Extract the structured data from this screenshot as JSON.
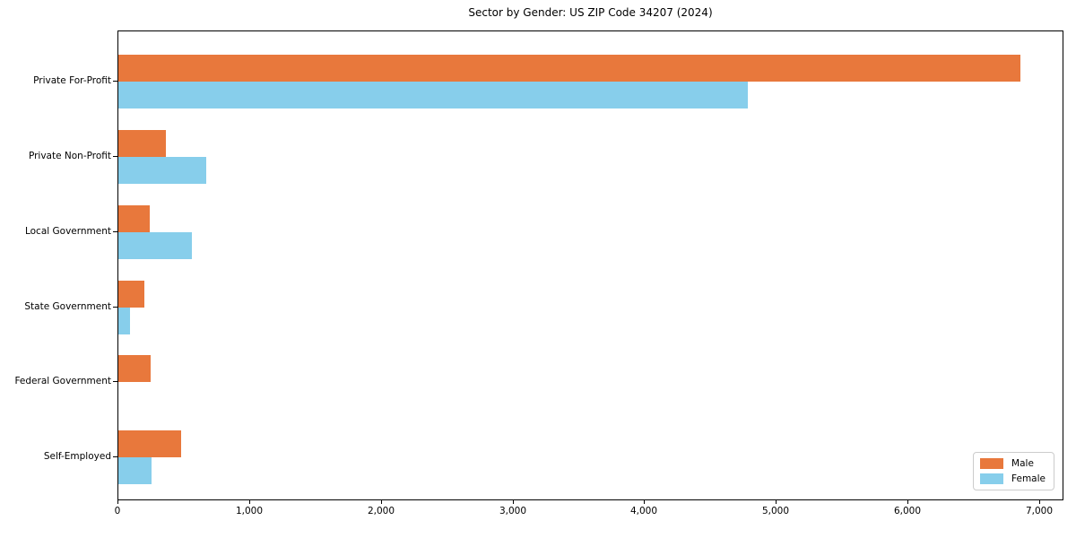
{
  "title": "Sector by Gender: US ZIP Code 34207 (2024)",
  "colors": {
    "male": "#e8783c",
    "female": "#87ceeb",
    "axis": "#000000",
    "legend_border": "#cccccc",
    "background": "#ffffff"
  },
  "legend": {
    "position": "lower right",
    "entries": [
      {
        "label": "Male"
      },
      {
        "label": "Female"
      }
    ]
  },
  "chart_data": {
    "type": "bar",
    "orientation": "horizontal",
    "title": "Sector by Gender: US ZIP Code 34207 (2024)",
    "categories": [
      "Private For-Profit",
      "Private Non-Profit",
      "Local Government",
      "State Government",
      "Federal Government",
      "Self-Employed"
    ],
    "series": [
      {
        "name": "Male",
        "color": "#e8783c",
        "values": [
          6850,
          360,
          240,
          195,
          245,
          475
        ]
      },
      {
        "name": "Female",
        "color": "#87ceeb",
        "values": [
          4780,
          670,
          555,
          90,
          0,
          255
        ]
      }
    ],
    "xlabel": "",
    "ylabel": "",
    "xlim": [
      0,
      7183
    ],
    "xticks": [
      0,
      1000,
      2000,
      3000,
      4000,
      5000,
      6000,
      7000
    ],
    "xtick_labels": [
      "0",
      "1,000",
      "2,000",
      "3,000",
      "4,000",
      "5,000",
      "6,000",
      "7,000"
    ],
    "grid": false,
    "legend_position": "lower right"
  }
}
